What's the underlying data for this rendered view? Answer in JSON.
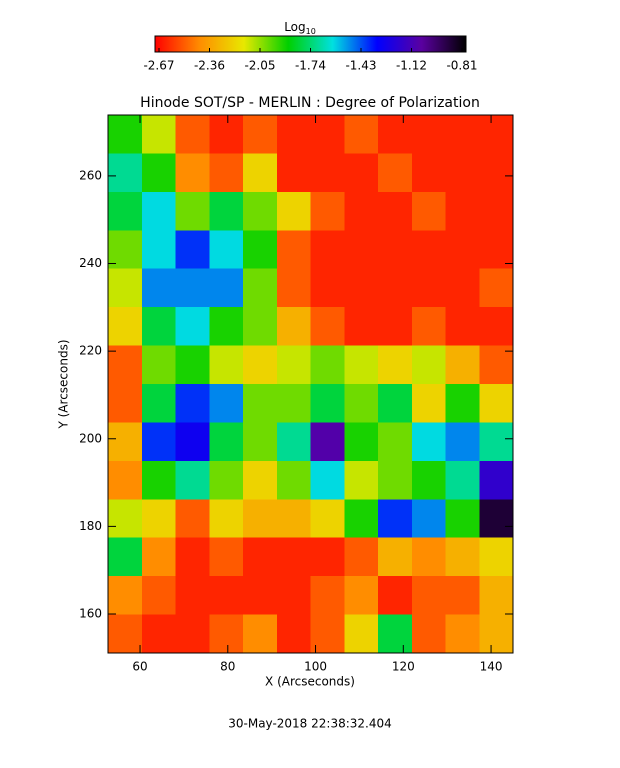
{
  "chart_data": {
    "type": "heatmap",
    "title": "Hinode SOT/SP - MERLIN : Degree of Polarization",
    "x_label": "X (Arcseconds)",
    "y_label": "Y (Arcseconds)",
    "footer": "30-May-2018 22:38:32.404",
    "colorbar_label": "Log",
    "colorbar_label_sub": "10",
    "clim": [
      -2.67,
      -0.81
    ],
    "cticks": [
      -2.67,
      -2.36,
      -2.05,
      -1.74,
      -1.43,
      -1.12,
      -0.81
    ],
    "colormap": [
      "#ff0000",
      "#ff8c00",
      "#e8e800",
      "#00d000",
      "#00e0e0",
      "#0000ff",
      "#5a00a0",
      "#000000"
    ],
    "xlim": [
      52.7,
      145.0
    ],
    "ylim": [
      151.1,
      273.9
    ],
    "xticks": [
      60,
      80,
      100,
      120,
      140
    ],
    "yticks": [
      160,
      180,
      200,
      220,
      240,
      260
    ],
    "z": [
      [
        -1.9,
        -2.1,
        -2.5,
        -2.6,
        -2.5,
        -2.6,
        -2.6,
        -2.5,
        -2.6,
        -2.6,
        -2.6,
        -2.6
      ],
      [
        -1.7,
        -1.9,
        -2.4,
        -2.5,
        -2.2,
        -2.6,
        -2.6,
        -2.6,
        -2.5,
        -2.6,
        -2.6,
        -2.6
      ],
      [
        -1.8,
        -1.6,
        -2.0,
        -1.8,
        -2.0,
        -2.2,
        -2.5,
        -2.6,
        -2.6,
        -2.5,
        -2.6,
        -2.6
      ],
      [
        -2.0,
        -1.6,
        -1.4,
        -1.6,
        -1.9,
        -2.5,
        -2.6,
        -2.6,
        -2.6,
        -2.6,
        -2.6,
        -2.6
      ],
      [
        -2.1,
        -1.5,
        -1.5,
        -1.5,
        -2.0,
        -2.5,
        -2.6,
        -2.6,
        -2.6,
        -2.6,
        -2.6,
        -2.5
      ],
      [
        -2.2,
        -1.8,
        -1.6,
        -1.9,
        -2.0,
        -2.3,
        -2.5,
        -2.6,
        -2.6,
        -2.5,
        -2.6,
        -2.6
      ],
      [
        -2.5,
        -2.0,
        -1.9,
        -2.1,
        -2.2,
        -2.1,
        -2.0,
        -2.1,
        -2.2,
        -2.1,
        -2.3,
        -2.5
      ],
      [
        -2.5,
        -1.8,
        -1.4,
        -1.5,
        -2.0,
        -2.0,
        -1.8,
        -2.0,
        -1.8,
        -2.2,
        -1.9,
        -2.2
      ],
      [
        -2.3,
        -1.4,
        -1.3,
        -1.8,
        -2.0,
        -1.7,
        -1.1,
        -1.9,
        -2.0,
        -1.6,
        -1.5,
        -1.7
      ],
      [
        -2.4,
        -1.9,
        -1.7,
        -2.0,
        -2.2,
        -2.0,
        -1.6,
        -2.1,
        -2.0,
        -1.9,
        -1.7,
        -1.2
      ],
      [
        -2.1,
        -2.2,
        -2.5,
        -2.2,
        -2.3,
        -2.3,
        -2.2,
        -1.9,
        -1.4,
        -1.5,
        -1.9,
        -0.9
      ],
      [
        -1.8,
        -2.4,
        -2.6,
        -2.5,
        -2.6,
        -2.6,
        -2.6,
        -2.5,
        -2.3,
        -2.4,
        -2.3,
        -2.2
      ],
      [
        -2.4,
        -2.5,
        -2.6,
        -2.6,
        -2.6,
        -2.6,
        -2.5,
        -2.4,
        -2.6,
        -2.5,
        -2.5,
        -2.3
      ],
      [
        -2.5,
        -2.6,
        -2.6,
        -2.5,
        -2.4,
        -2.6,
        -2.5,
        -2.2,
        -1.8,
        -2.5,
        -2.4,
        -2.3
      ]
    ]
  }
}
